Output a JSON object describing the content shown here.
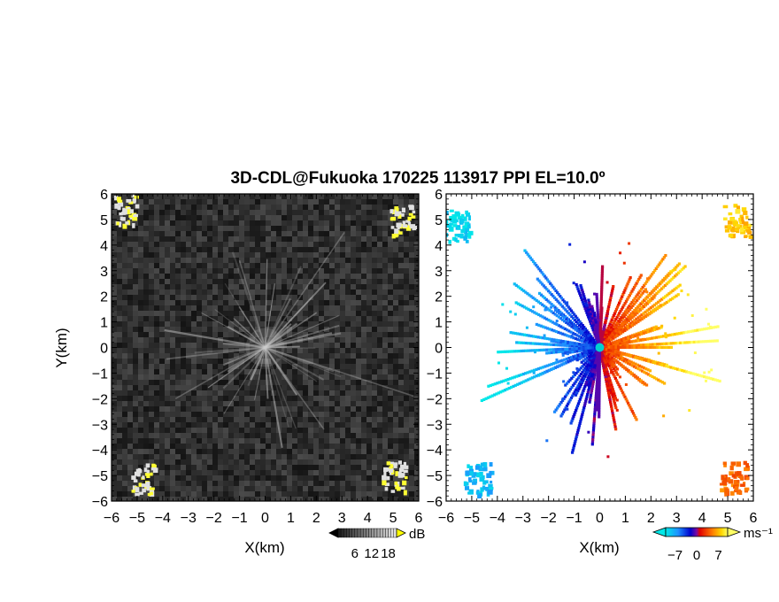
{
  "figure": {
    "title": "3D-CDL@Fukuoka 170225 113917 PPI EL=10.0º",
    "background": "#ffffff"
  },
  "chart_data": [
    {
      "type": "heatmap",
      "name": "reflectivity-ppi",
      "xlabel": "X(km)",
      "ylabel": "Y(km)",
      "xlim": [
        -6,
        6
      ],
      "ylim": [
        -6,
        6
      ],
      "xticks": [
        "−6",
        "−5",
        "−4",
        "−3",
        "−2",
        "−1",
        "0",
        "1",
        "2",
        "3",
        "4",
        "5",
        "6"
      ],
      "yticks": [
        "−6",
        "−5",
        "−4",
        "−3",
        "−2",
        "−1",
        "0",
        "1",
        "2",
        "3",
        "4",
        "5",
        "6"
      ],
      "colorbar": {
        "unit": "dB",
        "ticks": [
          6,
          12,
          18
        ],
        "tick_labels": [
          "6",
          "12",
          "18"
        ],
        "range": [
          0,
          21
        ],
        "colors": [
          "#000000",
          "#3a3a3a",
          "#8a8a8a",
          "#d8d8d8",
          "#ffff00"
        ]
      },
      "features": {
        "bright_edge_echoes": [
          {
            "x": -5.5,
            "y": 5.4,
            "quadrant": "upper-left"
          },
          {
            "x": 5.3,
            "y": 5.0,
            "quadrant": "upper-right"
          },
          {
            "x": -4.8,
            "y": -5.1,
            "quadrant": "lower-left"
          },
          {
            "x": 5.0,
            "y": -5.0,
            "quadrant": "lower-right"
          }
        ],
        "background_noise_db": [
          0,
          6
        ]
      }
    },
    {
      "type": "heatmap",
      "name": "doppler-velocity-ppi",
      "xlabel": "X(km)",
      "xlim": [
        -6,
        6
      ],
      "ylim": [
        -6,
        6
      ],
      "xticks": [
        "−6",
        "−5",
        "−4",
        "−3",
        "−2",
        "−1",
        "0",
        "1",
        "2",
        "3",
        "4",
        "5",
        "6"
      ],
      "yticks": [
        "−6",
        "−5",
        "−4",
        "−3",
        "−2",
        "−1",
        "0",
        "1",
        "2",
        "3",
        "4",
        "5",
        "6"
      ],
      "colorbar": {
        "unit": "ms⁻¹",
        "ticks": [
          -7,
          0,
          7
        ],
        "tick_labels": [
          "−7",
          "0",
          "7"
        ],
        "range": [
          -10,
          10
        ],
        "colors": [
          "#00e8e8",
          "#1e90ff",
          "#0000cd",
          "#7a0aa0",
          "#e00000",
          "#ff7a00",
          "#ffd700",
          "#ffff66"
        ]
      },
      "features": {
        "negative_velocity_side": "west",
        "positive_velocity_side": "east",
        "max_range_km": 4.5
      }
    }
  ]
}
